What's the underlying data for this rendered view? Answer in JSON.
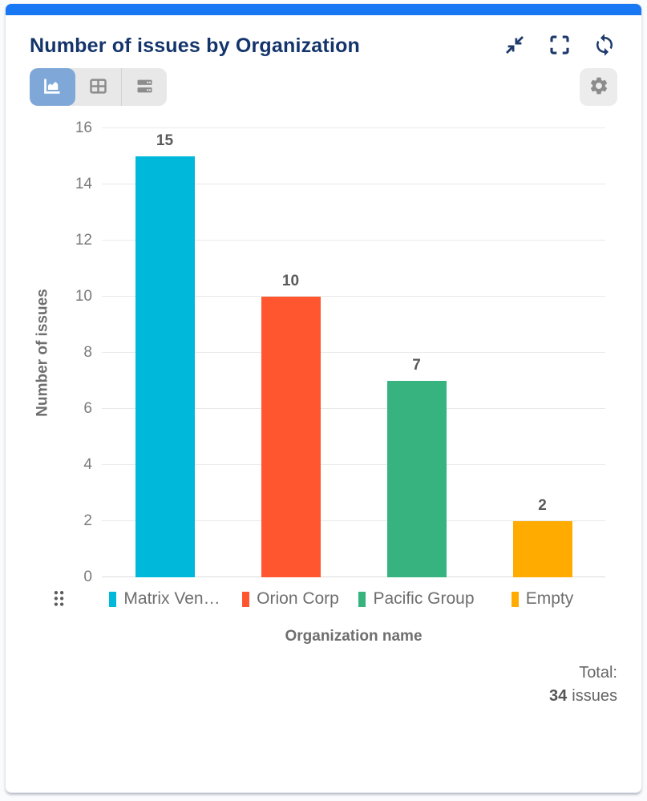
{
  "header": {
    "title": "Number of issues by Organization",
    "actions": [
      {
        "id": "collapse",
        "icon": "collapse-icon"
      },
      {
        "id": "fullscreen",
        "icon": "fullscreen-icon"
      },
      {
        "id": "refresh",
        "icon": "refresh-icon"
      }
    ]
  },
  "toolbar": {
    "view_modes": [
      {
        "id": "chart-view",
        "icon": "area-chart-icon",
        "selected": true
      },
      {
        "id": "table-view",
        "icon": "table-icon",
        "selected": false
      },
      {
        "id": "rows-view",
        "icon": "list-rows-icon",
        "selected": false
      }
    ],
    "settings": {
      "id": "settings",
      "icon": "gear-icon"
    }
  },
  "chart_data": {
    "type": "bar",
    "title": "Number of issues by Organization",
    "categories": [
      "Matrix Ven…",
      "Orion Corp",
      "Pacific Group",
      "Empty"
    ],
    "values": [
      15,
      10,
      7,
      2
    ],
    "colors": [
      "#00b8d9",
      "#ff5630",
      "#36b37e",
      "#ffab00"
    ],
    "xlabel": "Organization name",
    "ylabel": "Number of issues",
    "ylim": [
      0,
      16
    ],
    "ytick_step": 2,
    "grid": true,
    "legend_position": "bottom",
    "value_labels_shown": true
  },
  "footer": {
    "total_label": "Total:",
    "total_value": "34",
    "total_unit": "issues"
  },
  "colors": {
    "accent_bar": "#1877f2",
    "title_text": "#14356b",
    "selected_toggle": "#7fa8d9"
  }
}
